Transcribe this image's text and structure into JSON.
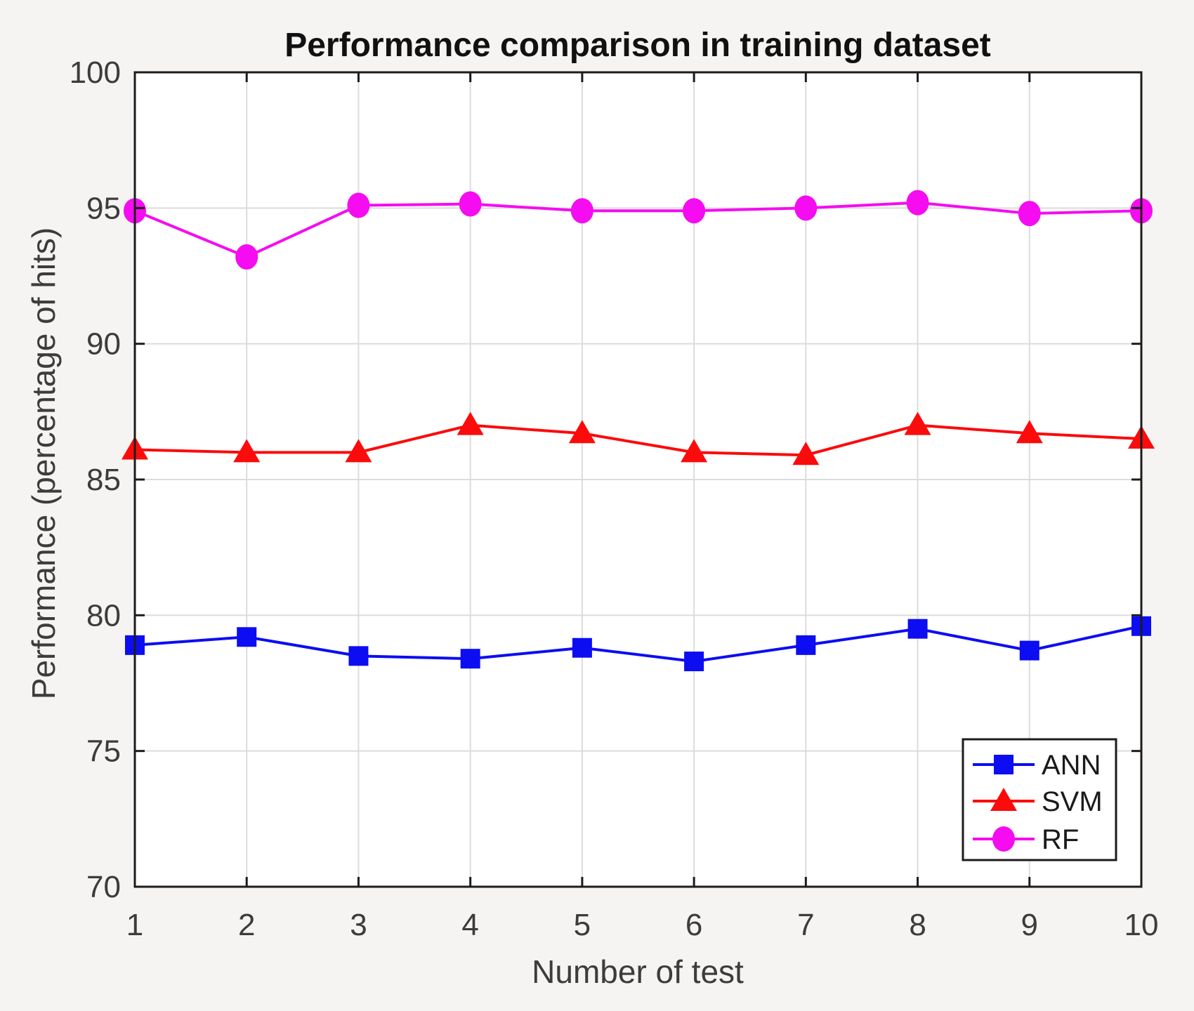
{
  "chart_data": {
    "type": "line",
    "title": "Performance comparison in training dataset",
    "xlabel": "Number of test",
    "ylabel": "Performance (percentage of hits)",
    "xlim": [
      1,
      10
    ],
    "ylim": [
      70,
      100
    ],
    "xtick": [
      1,
      2,
      3,
      4,
      5,
      6,
      7,
      8,
      9,
      10
    ],
    "ytick": [
      70,
      75,
      80,
      85,
      90,
      95,
      100
    ],
    "grid": true,
    "legend_position": "lower right",
    "x": [
      1,
      2,
      3,
      4,
      5,
      6,
      7,
      8,
      9,
      10
    ],
    "series": [
      {
        "name": "ANN",
        "color": "#0d0df2",
        "marker": "square",
        "values": [
          78.9,
          79.2,
          78.5,
          78.4,
          78.8,
          78.3,
          78.9,
          79.5,
          78.7,
          79.6
        ]
      },
      {
        "name": "SVM",
        "color": "#fb0b0b",
        "marker": "triangle",
        "values": [
          86.1,
          86.0,
          86.0,
          87.0,
          86.7,
          86.0,
          85.9,
          87.0,
          86.7,
          86.5
        ]
      },
      {
        "name": "RF",
        "color": "#f50cf0",
        "marker": "circle",
        "values": [
          94.9,
          93.2,
          95.1,
          95.15,
          94.9,
          94.9,
          95.0,
          95.2,
          94.8,
          94.9
        ]
      }
    ]
  },
  "colors": {
    "figure_background": "#f5f4f2",
    "plot_background": "#ffffff",
    "axis": "#1c1c1c",
    "grid": "#dcdcdc",
    "tick_label": "#3c3c3c",
    "title": "#111111"
  }
}
